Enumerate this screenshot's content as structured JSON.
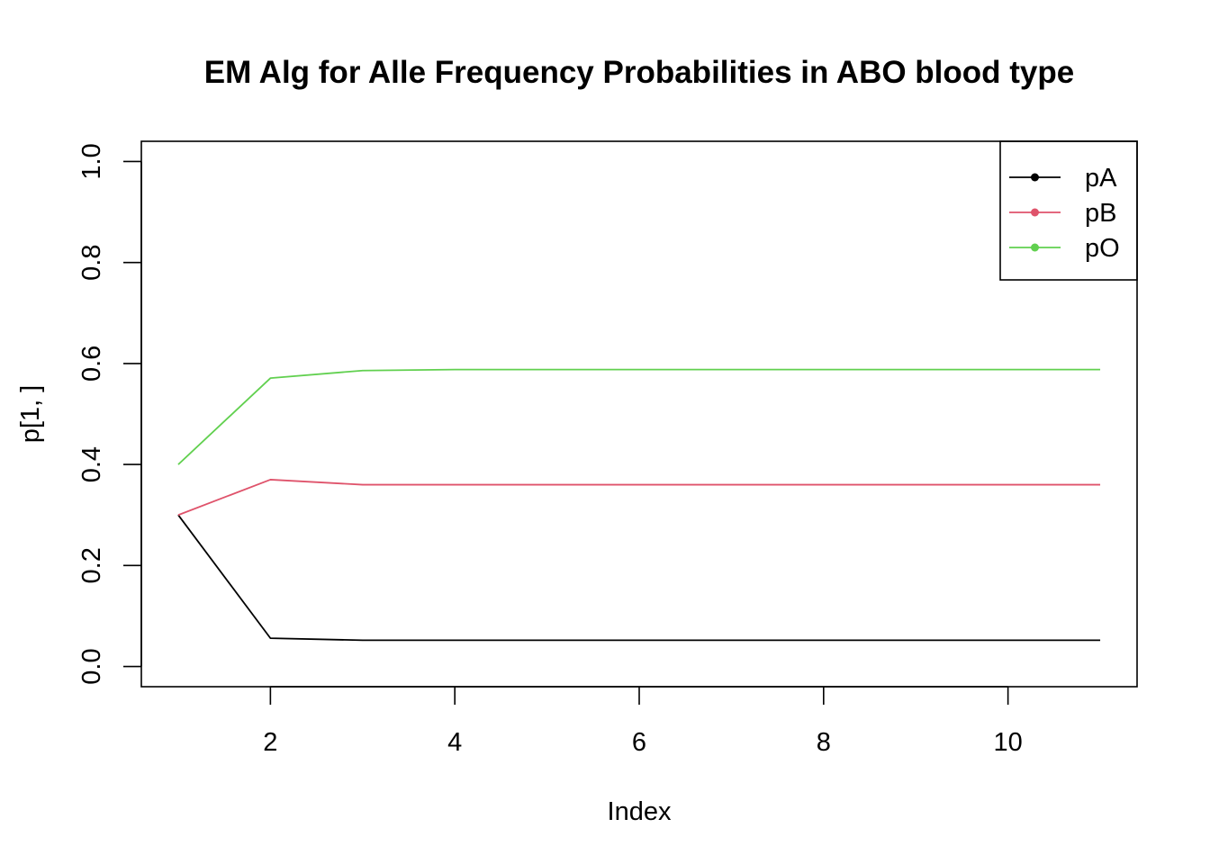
{
  "chart_data": {
    "type": "line",
    "title": "EM Alg for Alle Frequency Probabilities in ABO blood type",
    "xlabel": "Index",
    "ylabel": "p[1, ]",
    "xlim": [
      0.6,
      11.4
    ],
    "ylim": [
      -0.04,
      1.04
    ],
    "xticks": [
      2,
      4,
      6,
      8,
      10
    ],
    "xtick_labels": [
      "2",
      "4",
      "6",
      "8",
      "10"
    ],
    "yticks": [
      0.0,
      0.2,
      0.4,
      0.6,
      0.8,
      1.0
    ],
    "ytick_labels": [
      "0.0",
      "0.2",
      "0.4",
      "0.6",
      "0.8",
      "1.0"
    ],
    "grid": false,
    "legend_position": "top-right",
    "x": [
      1,
      2,
      3,
      4,
      5,
      6,
      7,
      8,
      9,
      10,
      11
    ],
    "series": [
      {
        "name": "pA",
        "color": "#000000",
        "values": [
          0.3,
          0.056,
          0.052,
          0.052,
          0.052,
          0.052,
          0.052,
          0.052,
          0.052,
          0.052,
          0.052
        ]
      },
      {
        "name": "pB",
        "color": "#DF536B",
        "values": [
          0.3,
          0.37,
          0.36,
          0.36,
          0.36,
          0.36,
          0.36,
          0.36,
          0.36,
          0.36,
          0.36
        ]
      },
      {
        "name": "pO",
        "color": "#61D04F",
        "values": [
          0.4,
          0.571,
          0.586,
          0.588,
          0.588,
          0.588,
          0.588,
          0.588,
          0.588,
          0.588,
          0.588
        ]
      }
    ]
  }
}
